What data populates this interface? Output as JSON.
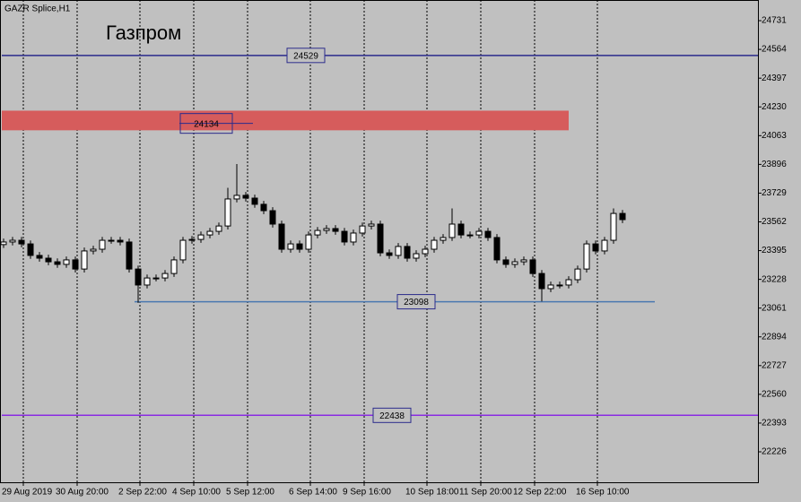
{
  "chart_data": {
    "type": "candlestick",
    "title": "GAZR Splice,H1",
    "annotation": "Газпром",
    "categories": [
      "29 Aug 2019",
      null,
      null,
      null,
      null,
      null,
      "30 Aug 20:00",
      null,
      null,
      null,
      null,
      null,
      null,
      "2 Sep 22:00",
      null,
      null,
      null,
      null,
      null,
      "4 Sep 10:00",
      null,
      null,
      null,
      null,
      null,
      "5 Sep 12:00",
      null,
      null,
      null,
      null,
      null,
      null,
      "6 Sep 14:00",
      null,
      null,
      null,
      null,
      null,
      "9 Sep 16:00",
      null,
      null,
      null,
      null,
      null,
      null,
      "10 Sep 18:00",
      null,
      null,
      null,
      null,
      null,
      "11 Sep 20:00",
      null,
      null,
      null,
      null,
      null,
      "12 Sep 22:00",
      null,
      null,
      null,
      null,
      null,
      null,
      "16 Sep 10:00",
      null,
      null,
      null,
      null,
      null
    ],
    "open": [
      23430,
      23445,
      23455,
      23434,
      23367,
      23351,
      23330,
      23315,
      23341,
      23288,
      23393,
      23403,
      23455,
      23455,
      23445,
      23288,
      23195,
      23236,
      23236,
      23262,
      23341,
      23455,
      23460,
      23486,
      23507,
      23538,
      23695,
      23716,
      23700,
      23664,
      23627,
      23549,
      23403,
      23434,
      23403,
      23486,
      23512,
      23523,
      23507,
      23445,
      23497,
      23538,
      23549,
      23382,
      23367,
      23419,
      23351,
      23377,
      23403,
      23455,
      23471,
      23549,
      23486,
      23486,
      23507,
      23471,
      23341,
      23315,
      23330,
      23341,
      23262,
      23174,
      23195,
      23195,
      23226,
      23288,
      23434,
      23393,
      23455,
      23611
    ],
    "high": [
      23465,
      23475,
      23475,
      23454,
      23387,
      23371,
      23350,
      23361,
      23361,
      23413,
      23423,
      23475,
      23475,
      23475,
      23465,
      23308,
      23256,
      23256,
      23282,
      23361,
      23475,
      23480,
      23506,
      23527,
      23558,
      23760,
      23898,
      23736,
      23720,
      23684,
      23647,
      23569,
      23454,
      23454,
      23506,
      23532,
      23543,
      23543,
      23527,
      23517,
      23558,
      23569,
      23569,
      23402,
      23439,
      23439,
      23397,
      23423,
      23475,
      23491,
      23640,
      23569,
      23506,
      23527,
      23527,
      23491,
      23361,
      23350,
      23361,
      23361,
      23282,
      23215,
      23215,
      23246,
      23308,
      23454,
      23454,
      23475,
      23640,
      23631
    ],
    "low": [
      23410,
      23425,
      23414,
      23347,
      23331,
      23310,
      23295,
      23295,
      23268,
      23268,
      23373,
      23383,
      23435,
      23425,
      23268,
      23091,
      23175,
      23216,
      23216,
      23242,
      23321,
      23435,
      23440,
      23466,
      23487,
      23518,
      23675,
      23680,
      23644,
      23607,
      23529,
      23383,
      23383,
      23383,
      23383,
      23466,
      23492,
      23487,
      23425,
      23425,
      23477,
      23518,
      23362,
      23347,
      23347,
      23331,
      23331,
      23357,
      23383,
      23435,
      23451,
      23466,
      23466,
      23466,
      23451,
      23321,
      23295,
      23295,
      23310,
      23242,
      23100,
      23154,
      23175,
      23175,
      23206,
      23268,
      23373,
      23373,
      23435,
      23555
    ],
    "close": [
      23445,
      23455,
      23434,
      23367,
      23351,
      23330,
      23315,
      23341,
      23288,
      23393,
      23403,
      23455,
      23455,
      23445,
      23288,
      23195,
      23236,
      23236,
      23262,
      23341,
      23455,
      23460,
      23486,
      23507,
      23538,
      23695,
      23716,
      23700,
      23664,
      23627,
      23549,
      23403,
      23434,
      23403,
      23486,
      23512,
      23523,
      23507,
      23445,
      23497,
      23538,
      23549,
      23382,
      23367,
      23419,
      23351,
      23377,
      23403,
      23455,
      23471,
      23549,
      23486,
      23486,
      23507,
      23471,
      23341,
      23315,
      23330,
      23341,
      23262,
      23174,
      23195,
      23195,
      23226,
      23288,
      23434,
      23393,
      23455,
      23611,
      23575
    ],
    "ylim": [
      22049,
      24851
    ],
    "yticks": [
      24731,
      24564,
      24397,
      24230,
      24063,
      23896,
      23729,
      23562,
      23395,
      23228,
      23061,
      22894,
      22727,
      22560,
      22393,
      22226
    ],
    "levels": [
      {
        "value": 24529,
        "color": "#2b2b8c"
      },
      {
        "value": 23098,
        "color": "#4a78b0"
      },
      {
        "value": 22438,
        "color": "#8a2be2"
      }
    ],
    "zone": {
      "value": 24134,
      "top": 24208,
      "bottom": 24094,
      "color": "#d65c5c"
    },
    "up_color": "#ffffff",
    "down_color": "#000000"
  }
}
